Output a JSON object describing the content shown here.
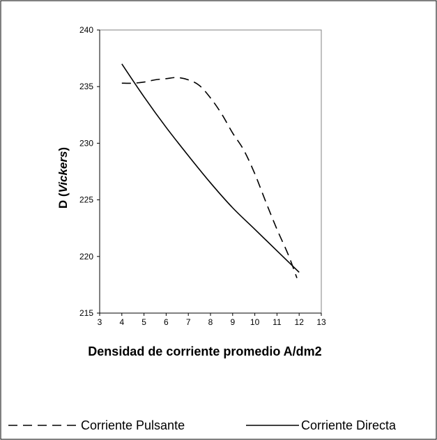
{
  "chart_data": {
    "type": "line",
    "xlabel": "Densidad de corriente promedio A/dm2",
    "ylabel_prefix": "D (",
    "ylabel_italic": "Vickers",
    "ylabel_suffix": ")",
    "xlim": [
      3,
      13
    ],
    "ylim": [
      215,
      240
    ],
    "xticks": [
      3,
      4,
      5,
      6,
      7,
      8,
      9,
      10,
      11,
      12,
      13
    ],
    "yticks": [
      215,
      220,
      225,
      230,
      235,
      240
    ],
    "grid": false,
    "legend_position": "bottom",
    "series": [
      {
        "name": "Corriente Pulsante",
        "style": "dashed",
        "color": "#000000",
        "x": [
          4,
          4.5,
          5,
          5.5,
          6,
          6.5,
          7,
          7.5,
          8,
          8.5,
          9,
          9.5,
          10,
          10.5,
          11,
          11.5,
          11.9
        ],
        "y": [
          235.3,
          235.3,
          235.4,
          235.6,
          235.7,
          235.8,
          235.6,
          235.1,
          234.0,
          232.6,
          230.9,
          229.4,
          227.3,
          224.8,
          222.4,
          220.2,
          218.1
        ]
      },
      {
        "name": "Corriente Directa",
        "style": "solid",
        "color": "#000000",
        "x": [
          4,
          5,
          6,
          7,
          8,
          9,
          10,
          11,
          12
        ],
        "y": [
          237.0,
          234.1,
          231.4,
          228.9,
          226.5,
          224.3,
          222.4,
          220.5,
          218.6
        ]
      }
    ]
  }
}
